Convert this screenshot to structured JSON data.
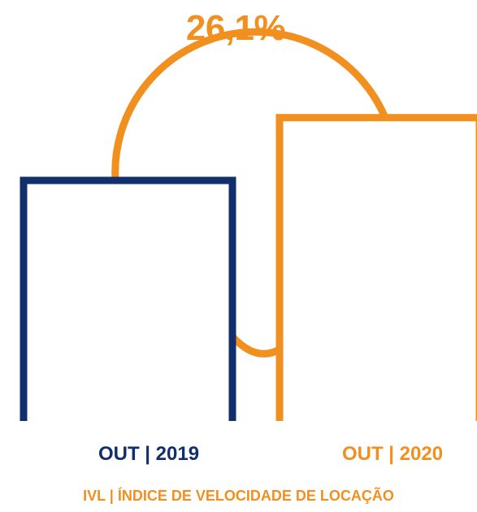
{
  "colors": {
    "series_2019": "#11306b",
    "series_2020": "#f18f1f"
  },
  "chart_data": {
    "type": "bar",
    "categories": [
      "OUT | 2019",
      "OUT | 2020"
    ],
    "values": [
      1.0,
      1.261
    ],
    "change_label": "26,1%",
    "footer": "IVL | ÍNDICE DE VELOCIDADE DE LOCAÇÃO"
  }
}
